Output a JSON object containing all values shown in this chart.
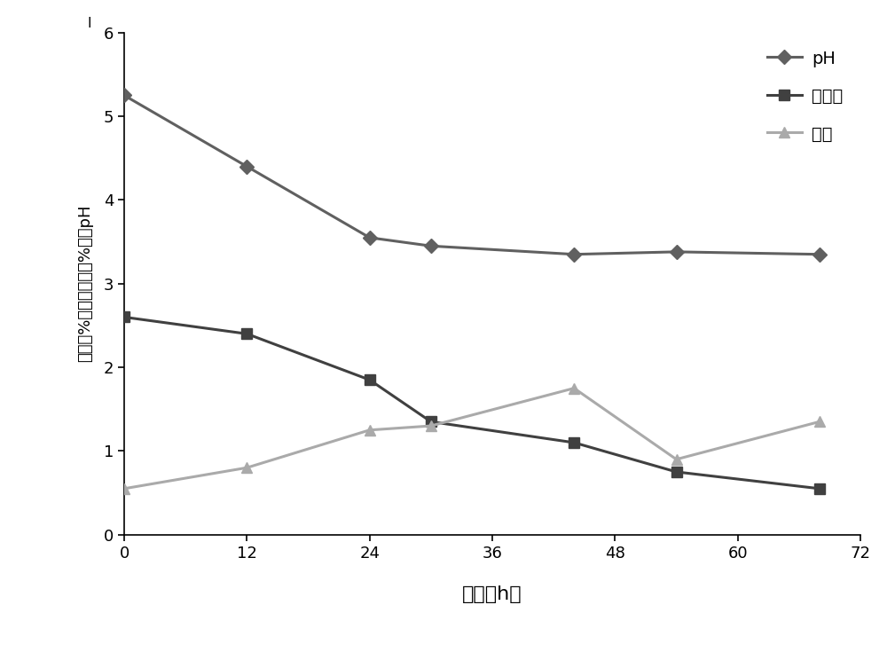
{
  "time_pH": [
    0,
    12,
    24,
    30,
    44,
    54,
    68
  ],
  "pH_values": [
    5.25,
    4.4,
    3.55,
    3.45,
    3.35,
    3.38,
    3.35
  ],
  "time_sugar": [
    0,
    12,
    24,
    30,
    44,
    54,
    68
  ],
  "sugar_values": [
    2.6,
    2.4,
    1.85,
    1.35,
    1.1,
    0.75,
    0.55
  ],
  "time_dw": [
    0,
    12,
    24,
    30,
    44,
    54,
    68
  ],
  "dw_values": [
    0.55,
    0.8,
    1.25,
    1.3,
    1.75,
    0.9,
    1.35
  ],
  "pH_color": "#606060",
  "sugar_color": "#404040",
  "dw_color": "#aaaaaa",
  "xlabel": "时间（h）",
  "ylabel": "干重（%），还原糖（%），pH",
  "xlim": [
    0,
    72
  ],
  "ylim": [
    0,
    6
  ],
  "yticks": [
    0,
    1,
    2,
    3,
    4,
    5,
    6
  ],
  "xticks": [
    0,
    12,
    24,
    36,
    48,
    60,
    72
  ],
  "legend_pH": "pH",
  "legend_sugar": "还原糖",
  "legend_dw": "干重",
  "background_color": "#ffffff",
  "fig_width": 10.0,
  "fig_height": 7.35
}
